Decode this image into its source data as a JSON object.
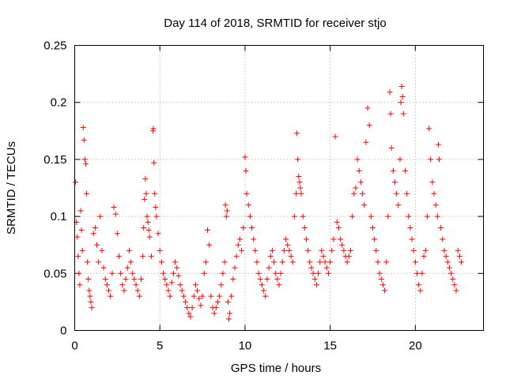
{
  "chart_data": {
    "type": "scatter",
    "title": "Day 114 of 2018, SRMTID for receiver stjo",
    "xlabel": "GPS time / hours",
    "ylabel": "SRMTID / TECUs",
    "xlim": [
      0,
      24
    ],
    "ylim": [
      0,
      0.25
    ],
    "xticks": [
      0,
      5,
      10,
      15,
      20
    ],
    "xtick_labels": [
      "0",
      "5",
      "10",
      "15",
      "20"
    ],
    "yticks": [
      0,
      0.05,
      0.1,
      0.15,
      0.2,
      0.25
    ],
    "ytick_labels": [
      "0",
      "0.05",
      "0.1",
      "0.15",
      "0.2",
      "0.25"
    ],
    "grid": true,
    "marker": "+",
    "color": "#ff0000",
    "series": [
      {
        "name": "SRMTID",
        "points": [
          [
            0.05,
            0.13
          ],
          [
            0.1,
            0.095
          ],
          [
            0.15,
            0.082
          ],
          [
            0.2,
            0.065
          ],
          [
            0.25,
            0.05
          ],
          [
            0.3,
            0.04
          ],
          [
            0.35,
            0.105
          ],
          [
            0.4,
            0.088
          ],
          [
            0.45,
            0.07
          ],
          [
            0.5,
            0.178
          ],
          [
            0.55,
            0.167
          ],
          [
            0.6,
            0.15
          ],
          [
            0.65,
            0.146
          ],
          [
            0.7,
            0.12
          ],
          [
            0.75,
            0.06
          ],
          [
            0.8,
            0.045
          ],
          [
            0.85,
            0.035
          ],
          [
            0.9,
            0.03
          ],
          [
            0.95,
            0.025
          ],
          [
            1.0,
            0.02
          ],
          [
            1.1,
            0.085
          ],
          [
            1.2,
            0.09
          ],
          [
            1.3,
            0.075
          ],
          [
            1.4,
            0.06
          ],
          [
            1.5,
            0.1
          ],
          [
            1.6,
            0.07
          ],
          [
            1.7,
            0.055
          ],
          [
            1.8,
            0.045
          ],
          [
            1.9,
            0.04
          ],
          [
            2.0,
            0.035
          ],
          [
            2.1,
            0.03
          ],
          [
            2.2,
            0.05
          ],
          [
            2.3,
            0.108
          ],
          [
            2.4,
            0.102
          ],
          [
            2.5,
            0.085
          ],
          [
            2.6,
            0.065
          ],
          [
            2.7,
            0.05
          ],
          [
            2.8,
            0.04
          ],
          [
            2.9,
            0.035
          ],
          [
            3.0,
            0.045
          ],
          [
            3.1,
            0.055
          ],
          [
            3.2,
            0.07
          ],
          [
            3.3,
            0.06
          ],
          [
            3.4,
            0.05
          ],
          [
            3.5,
            0.045
          ],
          [
            3.6,
            0.04
          ],
          [
            3.7,
            0.035
          ],
          [
            3.8,
            0.03
          ],
          [
            3.9,
            0.045
          ],
          [
            4.0,
            0.065
          ],
          [
            4.05,
            0.09
          ],
          [
            4.1,
            0.115
          ],
          [
            4.15,
            0.133
          ],
          [
            4.2,
            0.12
          ],
          [
            4.25,
            0.1
          ],
          [
            4.3,
            0.095
          ],
          [
            4.35,
            0.088
          ],
          [
            4.4,
            0.082
          ],
          [
            4.5,
            0.065
          ],
          [
            4.6,
            0.175
          ],
          [
            4.62,
            0.177
          ],
          [
            4.65,
            0.147
          ],
          [
            4.7,
            0.12
          ],
          [
            4.75,
            0.108
          ],
          [
            4.8,
            0.1
          ],
          [
            4.9,
            0.085
          ],
          [
            5.0,
            0.07
          ],
          [
            5.1,
            0.06
          ],
          [
            5.2,
            0.05
          ],
          [
            5.3,
            0.045
          ],
          [
            5.4,
            0.04
          ],
          [
            5.5,
            0.035
          ],
          [
            5.6,
            0.03
          ],
          [
            5.7,
            0.042
          ],
          [
            5.8,
            0.05
          ],
          [
            5.9,
            0.06
          ],
          [
            6.0,
            0.055
          ],
          [
            6.1,
            0.048
          ],
          [
            6.2,
            0.04
          ],
          [
            6.3,
            0.035
          ],
          [
            6.4,
            0.03
          ],
          [
            6.5,
            0.025
          ],
          [
            6.6,
            0.02
          ],
          [
            6.7,
            0.015
          ],
          [
            6.8,
            0.012
          ],
          [
            6.9,
            0.02
          ],
          [
            7.0,
            0.03
          ],
          [
            7.1,
            0.04
          ],
          [
            7.2,
            0.035
          ],
          [
            7.3,
            0.028
          ],
          [
            7.4,
            0.022
          ],
          [
            7.5,
            0.03
          ],
          [
            7.6,
            0.05
          ],
          [
            7.7,
            0.06
          ],
          [
            7.8,
            0.088
          ],
          [
            7.9,
            0.075
          ],
          [
            8.0,
            0.03
          ],
          [
            8.1,
            0.02
          ],
          [
            8.2,
            0.015
          ],
          [
            8.3,
            0.02
          ],
          [
            8.4,
            0.025
          ],
          [
            8.5,
            0.03
          ],
          [
            8.6,
            0.04
          ],
          [
            8.7,
            0.05
          ],
          [
            8.8,
            0.06
          ],
          [
            8.85,
            0.11
          ],
          [
            8.9,
            0.1
          ],
          [
            8.95,
            0.105
          ],
          [
            9.0,
            0.025
          ],
          [
            9.05,
            0.01
          ],
          [
            9.1,
            0.015
          ],
          [
            9.2,
            0.03
          ],
          [
            9.3,
            0.045
          ],
          [
            9.4,
            0.055
          ],
          [
            9.5,
            0.065
          ],
          [
            9.6,
            0.075
          ],
          [
            9.7,
            0.08
          ],
          [
            9.8,
            0.07
          ],
          [
            9.9,
            0.09
          ],
          [
            10.0,
            0.152
          ],
          [
            10.05,
            0.14
          ],
          [
            10.1,
            0.12
          ],
          [
            10.2,
            0.11
          ],
          [
            10.3,
            0.1
          ],
          [
            10.4,
            0.09
          ],
          [
            10.5,
            0.08
          ],
          [
            10.6,
            0.07
          ],
          [
            10.7,
            0.06
          ],
          [
            10.8,
            0.05
          ],
          [
            10.9,
            0.045
          ],
          [
            11.0,
            0.04
          ],
          [
            11.1,
            0.035
          ],
          [
            11.2,
            0.03
          ],
          [
            11.3,
            0.045
          ],
          [
            11.4,
            0.055
          ],
          [
            11.5,
            0.065
          ],
          [
            11.6,
            0.07
          ],
          [
            11.7,
            0.06
          ],
          [
            11.8,
            0.05
          ],
          [
            11.9,
            0.045
          ],
          [
            12.0,
            0.04
          ],
          [
            12.1,
            0.05
          ],
          [
            12.2,
            0.06
          ],
          [
            12.3,
            0.07
          ],
          [
            12.4,
            0.08
          ],
          [
            12.5,
            0.075
          ],
          [
            12.6,
            0.07
          ],
          [
            12.7,
            0.065
          ],
          [
            12.8,
            0.06
          ],
          [
            12.9,
            0.1
          ],
          [
            13.0,
            0.12
          ],
          [
            13.05,
            0.173
          ],
          [
            13.1,
            0.15
          ],
          [
            13.15,
            0.135
          ],
          [
            13.2,
            0.13
          ],
          [
            13.25,
            0.125
          ],
          [
            13.3,
            0.12
          ],
          [
            13.4,
            0.1
          ],
          [
            13.5,
            0.09
          ],
          [
            13.6,
            0.08
          ],
          [
            13.7,
            0.07
          ],
          [
            13.8,
            0.06
          ],
          [
            13.9,
            0.055
          ],
          [
            14.0,
            0.05
          ],
          [
            14.1,
            0.045
          ],
          [
            14.2,
            0.04
          ],
          [
            14.3,
            0.05
          ],
          [
            14.4,
            0.06
          ],
          [
            14.5,
            0.07
          ],
          [
            14.6,
            0.065
          ],
          [
            14.7,
            0.06
          ],
          [
            14.8,
            0.055
          ],
          [
            14.9,
            0.05
          ],
          [
            15.0,
            0.06
          ],
          [
            15.1,
            0.07
          ],
          [
            15.2,
            0.08
          ],
          [
            15.3,
            0.17
          ],
          [
            15.4,
            0.095
          ],
          [
            15.5,
            0.09
          ],
          [
            15.6,
            0.08
          ],
          [
            15.7,
            0.075
          ],
          [
            15.8,
            0.07
          ],
          [
            15.9,
            0.065
          ],
          [
            16.0,
            0.06
          ],
          [
            16.1,
            0.065
          ],
          [
            16.2,
            0.07
          ],
          [
            16.3,
            0.1
          ],
          [
            16.4,
            0.12
          ],
          [
            16.5,
            0.125
          ],
          [
            16.6,
            0.15
          ],
          [
            16.7,
            0.14
          ],
          [
            16.8,
            0.13
          ],
          [
            16.9,
            0.12
          ],
          [
            17.0,
            0.11
          ],
          [
            17.1,
            0.165
          ],
          [
            17.2,
            0.195
          ],
          [
            17.3,
            0.18
          ],
          [
            17.4,
            0.1
          ],
          [
            17.5,
            0.09
          ],
          [
            17.6,
            0.08
          ],
          [
            17.7,
            0.07
          ],
          [
            17.8,
            0.06
          ],
          [
            17.9,
            0.05
          ],
          [
            18.0,
            0.045
          ],
          [
            18.1,
            0.04
          ],
          [
            18.2,
            0.035
          ],
          [
            18.3,
            0.06
          ],
          [
            18.4,
            0.1
          ],
          [
            18.5,
            0.209
          ],
          [
            18.55,
            0.19
          ],
          [
            18.6,
            0.16
          ],
          [
            18.7,
            0.14
          ],
          [
            18.8,
            0.13
          ],
          [
            18.9,
            0.12
          ],
          [
            19.0,
            0.11
          ],
          [
            19.1,
            0.15
          ],
          [
            19.15,
            0.2
          ],
          [
            19.2,
            0.214
          ],
          [
            19.25,
            0.205
          ],
          [
            19.3,
            0.19
          ],
          [
            19.4,
            0.14
          ],
          [
            19.5,
            0.12
          ],
          [
            19.6,
            0.1
          ],
          [
            19.7,
            0.09
          ],
          [
            19.8,
            0.08
          ],
          [
            19.9,
            0.07
          ],
          [
            20.0,
            0.06
          ],
          [
            20.1,
            0.05
          ],
          [
            20.2,
            0.04
          ],
          [
            20.3,
            0.035
          ],
          [
            20.4,
            0.05
          ],
          [
            20.5,
            0.065
          ],
          [
            20.6,
            0.07
          ],
          [
            20.7,
            0.1
          ],
          [
            20.8,
            0.177
          ],
          [
            20.9,
            0.15
          ],
          [
            21.0,
            0.13
          ],
          [
            21.1,
            0.12
          ],
          [
            21.2,
            0.11
          ],
          [
            21.3,
            0.1
          ],
          [
            21.35,
            0.163
          ],
          [
            21.4,
            0.15
          ],
          [
            21.5,
            0.09
          ],
          [
            21.6,
            0.08
          ],
          [
            21.7,
            0.07
          ],
          [
            21.8,
            0.065
          ],
          [
            21.9,
            0.06
          ],
          [
            22.0,
            0.055
          ],
          [
            22.1,
            0.05
          ],
          [
            22.2,
            0.045
          ],
          [
            22.3,
            0.04
          ],
          [
            22.4,
            0.035
          ],
          [
            22.5,
            0.07
          ],
          [
            22.6,
            0.065
          ],
          [
            22.7,
            0.06
          ]
        ]
      }
    ]
  }
}
